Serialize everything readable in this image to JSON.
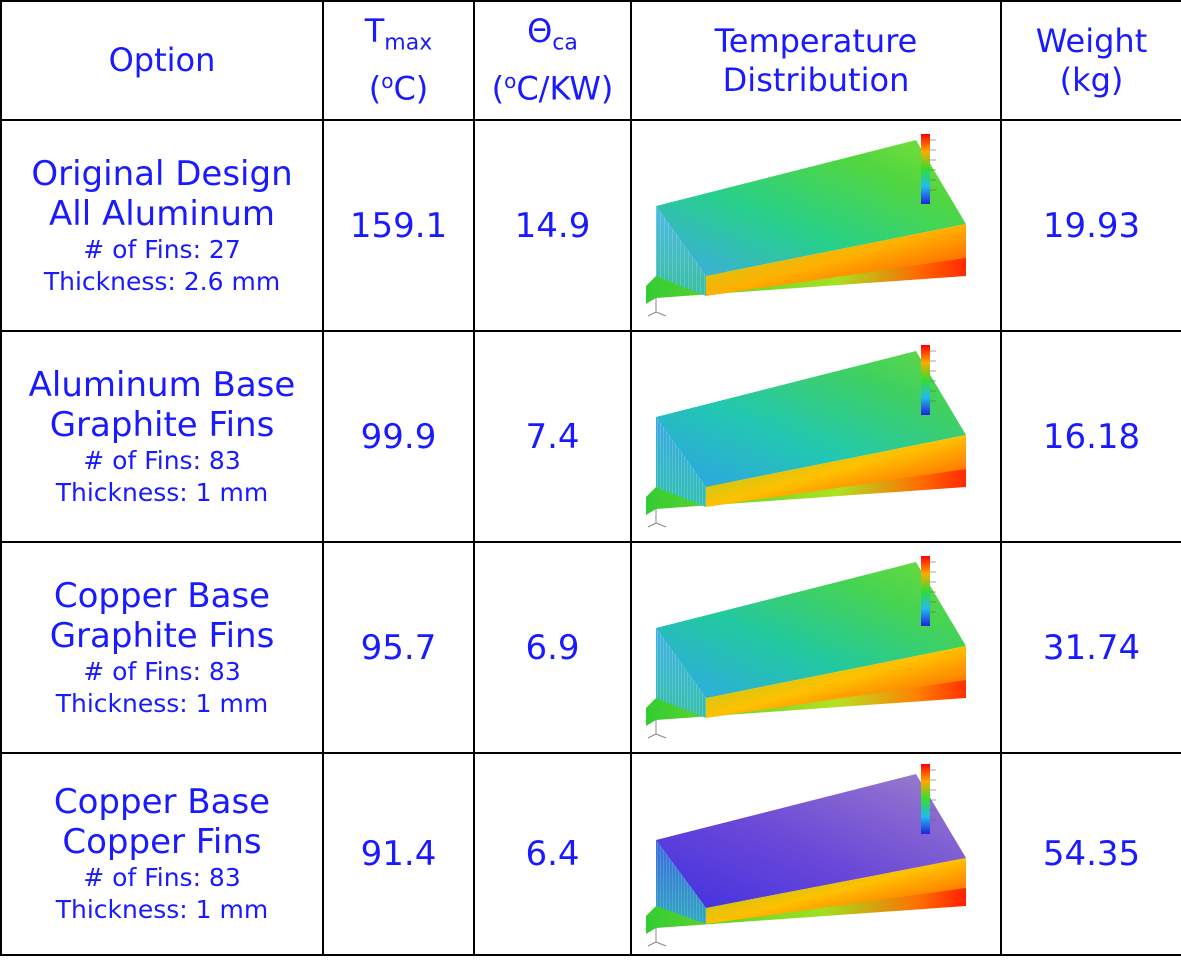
{
  "header": {
    "option": "Option",
    "tmax_main": "T",
    "tmax_sub": "max",
    "tmax_unit_pre": "(",
    "tmax_unit_sup": "o",
    "tmax_unit_post": "C)",
    "theta_main": "Θ",
    "theta_sub": "ca",
    "theta_unit_pre": "(",
    "theta_unit_sup": "o",
    "theta_unit_post": "C/KW)",
    "temp_line1": "Temperature",
    "temp_line2": "Distribution",
    "weight_line1": "Weight",
    "weight_line2": "(kg)"
  },
  "rows": [
    {
      "name1": "Original Design",
      "name2": "All Aluminum",
      "fins": "# of Fins: 27",
      "thickness": "Thickness: 2.6 mm",
      "tmax": "159.1",
      "theta": "14.9",
      "weight": "19.93"
    },
    {
      "name1": "Aluminum Base",
      "name2": "Graphite Fins",
      "fins": "# of Fins: 83",
      "thickness": "Thickness: 1 mm",
      "tmax": "99.9",
      "theta": "7.4",
      "weight": "16.18"
    },
    {
      "name1": "Copper Base",
      "name2": "Graphite Fins",
      "fins": "# of Fins: 83",
      "thickness": "Thickness: 1 mm",
      "tmax": "95.7",
      "theta": "6.9",
      "weight": "31.74"
    },
    {
      "name1": "Copper Base",
      "name2": "Copper Fins",
      "fins": "# of Fins: 83",
      "thickness": "Thickness: 1 mm",
      "tmax": "91.4",
      "theta": "6.4",
      "weight": "54.35"
    }
  ],
  "colors": {
    "text": "#1a1aff",
    "border": "#000000"
  }
}
